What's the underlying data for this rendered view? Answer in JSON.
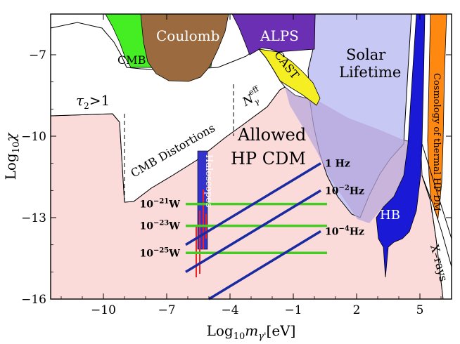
{
  "chart_data": {
    "type": "area",
    "title": "",
    "xlabel_main": "Log",
    "xlabel_sub": "10",
    "xlabel_var": "m",
    "xlabel_var_sub": "γ'",
    "xlabel_unit": "[eV]",
    "ylabel_main": "Log",
    "ylabel_sub": "10",
    "ylabel_var": "χ",
    "xlim": [
      -12.5,
      6.5
    ],
    "ylim": [
      -16,
      -5.5
    ],
    "x_ticks": [
      -10,
      -7,
      -4,
      -1,
      2,
      5
    ],
    "x_tick_labels": [
      "−10",
      "−7",
      "−4",
      "−1",
      "2",
      "5"
    ],
    "y_ticks": [
      -7,
      -10,
      -13,
      -16
    ],
    "y_tick_labels": [
      "−7",
      "−10",
      "−13",
      "−16"
    ],
    "grid": false,
    "regions": [
      {
        "name": "CMB",
        "color": "#44ee22"
      },
      {
        "name": "Coulomb",
        "color": "#9b6a3f"
      },
      {
        "name": "ALPS",
        "color": "#6a2fb3"
      },
      {
        "name": "CAST",
        "color": "#f5ee22"
      },
      {
        "name": "Solar Lifetime",
        "color": "#c8c8f4"
      },
      {
        "name": "HB",
        "color": "#1a1ad6"
      },
      {
        "name": "Cosmology of thermal HP DM",
        "color": "#ff8811"
      },
      {
        "name": "X-rays",
        "color": "#ffffff"
      },
      {
        "name": "Haloscopes",
        "color": "#3333cc"
      },
      {
        "name": "Allowed HP CDM",
        "color": "#fbdada"
      }
    ],
    "annotations": {
      "tau": "τ",
      "tau_sub": "2",
      "tau_rest": ">1",
      "neff_main": "N",
      "neff_sup": "eff",
      "neff_sub": "γ",
      "cmb_distortions": "CMB Distortions",
      "allowed_line1": "Allowed",
      "allowed_line2": "HP CDM",
      "solar_line1": "Solar",
      "solar_line2": "Lifetime",
      "hb": "HB",
      "xrays": "X–rays",
      "cosmology": "Cosmology of thermal HP DM",
      "haloscopes": "Haloscopes",
      "cmb": "CMB",
      "coulomb": "Coulomb",
      "alps": "ALPS",
      "cast": "CAST"
    },
    "power_lines": {
      "color": "#44cc22",
      "series": [
        {
          "label_base": "10",
          "label_exp": "−21",
          "label_unit": "W",
          "y": -12.5,
          "x": [
            -6.1,
            0.6
          ]
        },
        {
          "label_base": "10",
          "label_exp": "−23",
          "label_unit": "W",
          "y": -13.3,
          "x": [
            -6.1,
            0.6
          ]
        },
        {
          "label_base": "10",
          "label_exp": "−25",
          "label_unit": "W",
          "y": -14.3,
          "x": [
            -6.1,
            0.6
          ]
        }
      ]
    },
    "bandwidth_lines": {
      "color": "#1a2aa0",
      "series": [
        {
          "label_base": "1 Hz",
          "label_exp": "",
          "label_unit": "",
          "x": [
            -6.1,
            0.3
          ],
          "y": [
            -14.0,
            -11.0
          ]
        },
        {
          "label_base": "10",
          "label_exp": "−2",
          "label_unit": "Hz",
          "x": [
            -6.1,
            0.3
          ],
          "y": [
            -15.0,
            -12.0
          ]
        },
        {
          "label_base": "10",
          "label_exp": "−4",
          "label_unit": "Hz",
          "x": [
            -5.0,
            0.3
          ],
          "y": [
            -16.0,
            -13.5
          ]
        }
      ]
    }
  }
}
